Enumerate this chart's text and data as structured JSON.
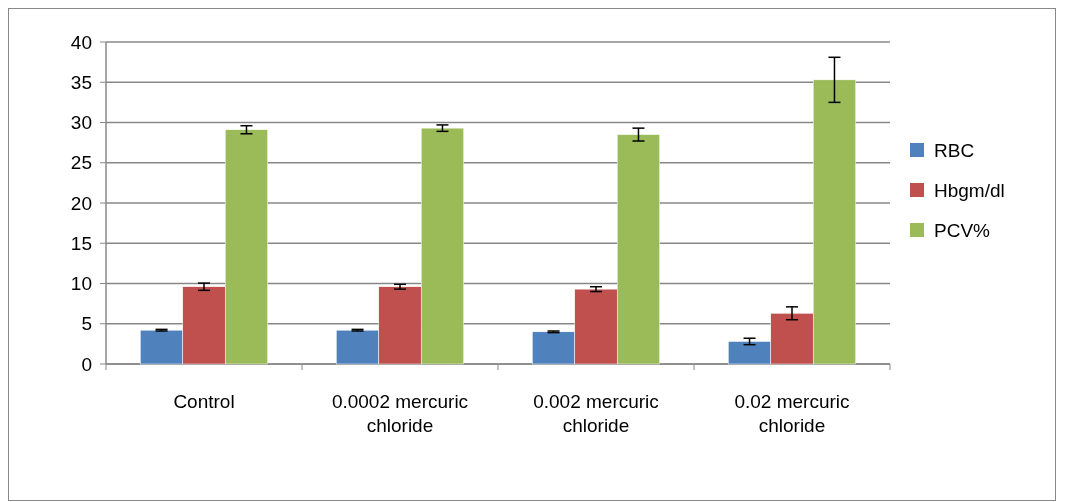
{
  "chart_data": {
    "type": "bar",
    "categories": [
      "Control",
      "0.0002 mercuric chloride",
      "0.002 mercuric chloride",
      "0.02 mercuric chloride"
    ],
    "series": [
      {
        "name": "RBC",
        "color": "#4f81bd",
        "values": [
          4.2,
          4.2,
          4.0,
          2.8
        ],
        "errors": [
          0.1,
          0.1,
          0.1,
          0.4
        ]
      },
      {
        "name": "Hbgm/dl",
        "color": "#c0504d",
        "values": [
          9.6,
          9.6,
          9.3,
          6.3
        ],
        "errors": [
          0.45,
          0.3,
          0.3,
          0.8
        ]
      },
      {
        "name": "PCV%",
        "color": "#9bbb59",
        "values": [
          29.1,
          29.3,
          28.5,
          35.3
        ],
        "errors": [
          0.5,
          0.4,
          0.8,
          2.8
        ]
      }
    ],
    "ylim": [
      0,
      40
    ],
    "yticks": [
      0,
      5,
      10,
      15,
      20,
      25,
      30,
      35,
      40
    ],
    "grid": "y",
    "legend": "right"
  }
}
